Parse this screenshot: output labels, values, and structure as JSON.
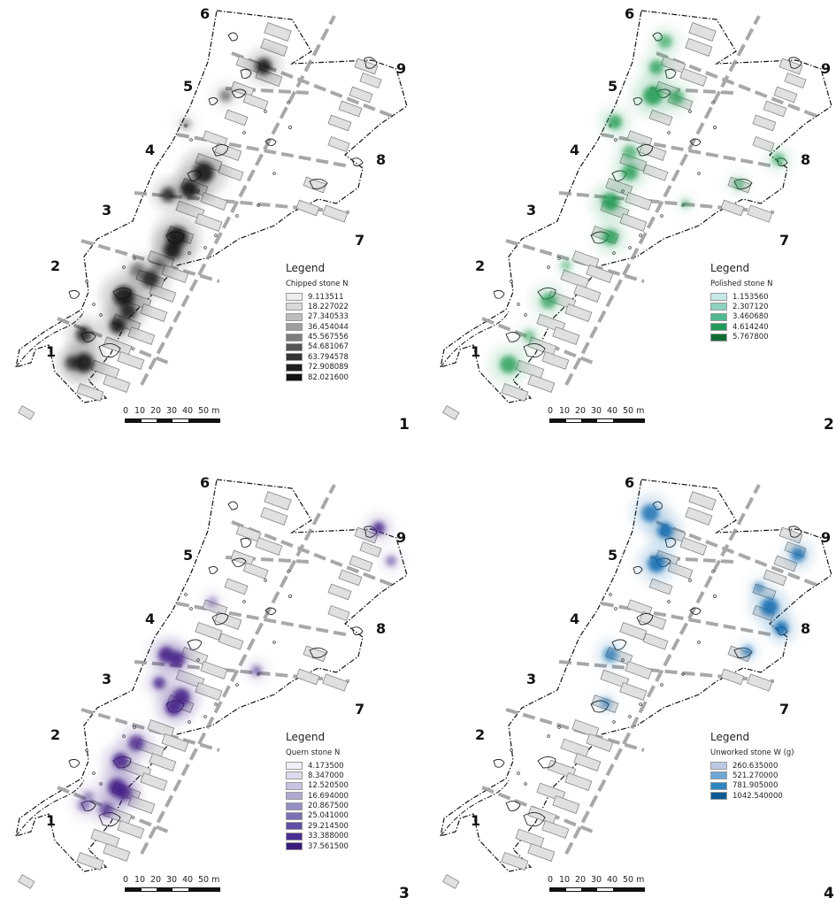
{
  "scale_labels": [
    "0",
    "10",
    "20",
    "30",
    "40",
    "50 m"
  ],
  "zones": [
    "1",
    "2",
    "3",
    "4",
    "5",
    "6",
    "7",
    "8",
    "9"
  ],
  "panels": [
    {
      "number": "1",
      "legend_title": "Legend",
      "legend_subtitle": "Chipped stone N",
      "legend_items": [
        "9.113511",
        "18.227022",
        "27.340533",
        "36.454044",
        "45.567556",
        "54.681067",
        "63.794578",
        "72.908089",
        "82.021600"
      ],
      "legend_colors": [
        "#eeeeee",
        "#d8d8d8",
        "#bdbdbd",
        "#9e9e9e",
        "#7d7d7d",
        "#555555",
        "#333333",
        "#1e1e1e",
        "#111111"
      ],
      "heat_color": "#111111"
    },
    {
      "number": "2",
      "legend_title": "Legend",
      "legend_subtitle": "Polished stone N",
      "legend_items": [
        "1.153560",
        "2.307120",
        "3.460680",
        "4.614240",
        "5.767800"
      ],
      "legend_colors": [
        "#c9e9e9",
        "#8fd1c1",
        "#4fb890",
        "#209a5a",
        "#0f6d34"
      ],
      "heat_color": "#1a9850"
    },
    {
      "number": "3",
      "legend_title": "Legend",
      "legend_subtitle": "Quern stone N",
      "legend_items": [
        "4.173500",
        "8.347000",
        "12.520500",
        "16.694000",
        "20.867500",
        "25.041000",
        "29.214500",
        "33.388000",
        "37.561500"
      ],
      "legend_colors": [
        "#f1eff8",
        "#dcdaee",
        "#c6c4e2",
        "#aeaad4",
        "#948fc4",
        "#7a70b4",
        "#5f4ea3",
        "#4a2f93",
        "#3a1a7e"
      ],
      "heat_color": "#3f1f85"
    },
    {
      "number": "4",
      "legend_title": "Legend",
      "legend_subtitle": "Unworked stone W (g)",
      "legend_items": [
        "260.635000",
        "521.270000",
        "781.905000",
        "1042.540000"
      ],
      "legend_colors": [
        "#bcc8e6",
        "#6fa7d6",
        "#2e86c1",
        "#0a5a96"
      ],
      "heat_color": "#0b67ad"
    }
  ]
}
